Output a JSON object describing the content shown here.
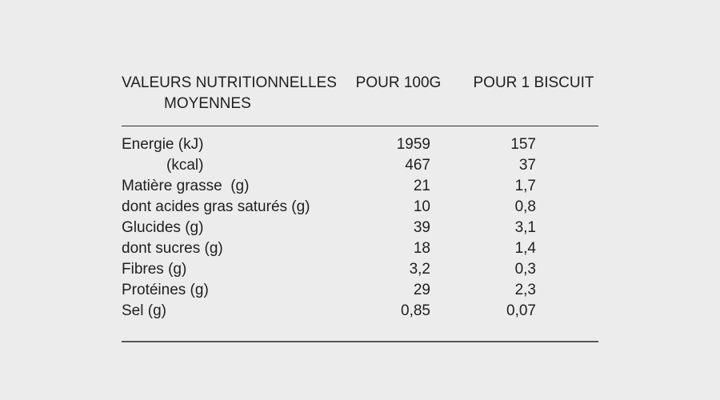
{
  "page": {
    "colors": {
      "background": "#ececec",
      "text": "#1f1f1f",
      "rule_top": "#2e2e2e",
      "rule_bottom": "#565656"
    }
  },
  "table": {
    "header": {
      "label_line1": "VALEURS NUTRITIONNELLES",
      "label_line2": "MOYENNES",
      "col_100g": "POUR 100G",
      "col_biscuit": "POUR 1 BISCUIT"
    },
    "rows": [
      {
        "label": "Energie (kJ)",
        "per_100g": "1959",
        "per_biscuit": "157"
      },
      {
        "label": "(kcal)",
        "per_100g": "467",
        "per_biscuit": "37"
      },
      {
        "label": "Matière grasse  (g)",
        "per_100g": "21",
        "per_biscuit": "1,7"
      },
      {
        "label": "dont acides gras saturés (g)",
        "per_100g": "10",
        "per_biscuit": "0,8"
      },
      {
        "label": "Glucides (g)",
        "per_100g": "39",
        "per_biscuit": "3,1"
      },
      {
        "label": "dont sucres (g)",
        "per_100g": "18",
        "per_biscuit": "1,4"
      },
      {
        "label": "Fibres (g)",
        "per_100g": "3,2",
        "per_biscuit": "0,3"
      },
      {
        "label": "Protéines (g)",
        "per_100g": "29",
        "per_biscuit": "2,3"
      },
      {
        "label": "Sel (g)",
        "per_100g": "0,85",
        "per_biscuit": "0,07"
      }
    ]
  }
}
